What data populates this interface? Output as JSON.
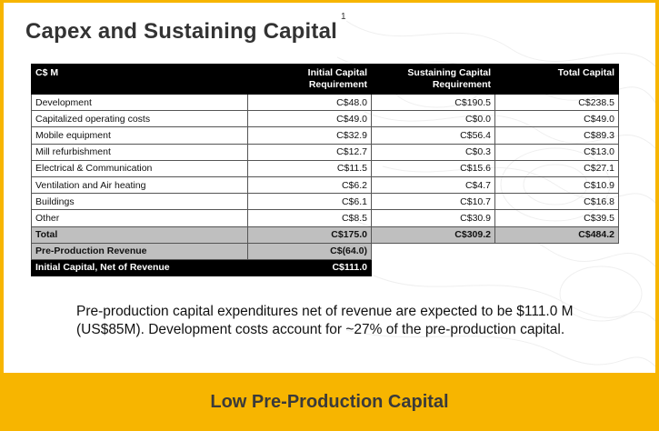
{
  "title": "Capex and Sustaining Capital",
  "title_footnote": "1",
  "table": {
    "headers": [
      "C$ M",
      "Initial Capital Requirement",
      "Sustaining Capital Requirement",
      "Total Capital"
    ],
    "rows": [
      {
        "label": "Development",
        "initial": "C$48.0",
        "sustaining": "C$190.5",
        "total": "C$238.5"
      },
      {
        "label": "Capitalized operating costs",
        "initial": "C$49.0",
        "sustaining": "C$0.0",
        "total": "C$49.0"
      },
      {
        "label": "Mobile equipment",
        "initial": "C$32.9",
        "sustaining": "C$56.4",
        "total": "C$89.3"
      },
      {
        "label": "Mill refurbishment",
        "initial": "C$12.7",
        "sustaining": "C$0.3",
        "total": "C$13.0"
      },
      {
        "label": "Electrical & Communication",
        "initial": "C$11.5",
        "sustaining": "C$15.6",
        "total": "C$27.1"
      },
      {
        "label": "Ventilation and Air heating",
        "initial": "C$6.2",
        "sustaining": "C$4.7",
        "total": "C$10.9"
      },
      {
        "label": "Buildings",
        "initial": "C$6.1",
        "sustaining": "C$10.7",
        "total": "C$16.8"
      },
      {
        "label": "Other",
        "initial": "C$8.5",
        "sustaining": "C$30.9",
        "total": "C$39.5"
      }
    ],
    "total": {
      "label": "Total",
      "initial": "C$175.0",
      "sustaining": "C$309.2",
      "total": "C$484.2"
    },
    "pre_production": {
      "label": "Pre-Production Revenue",
      "value": "C$(64.0)"
    },
    "net": {
      "label": "Initial Capital, Net of Revenue",
      "value": "C$111.0"
    }
  },
  "note": "Pre-production capital expenditures net of revenue are expected to be $111.0 M (US$85M). Development costs account for ~27% of the pre-production capital.",
  "banner": "Low Pre-Production Capital",
  "colors": {
    "accent": "#f7b500",
    "header": "#000000",
    "total_row": "#bfbfbf"
  }
}
